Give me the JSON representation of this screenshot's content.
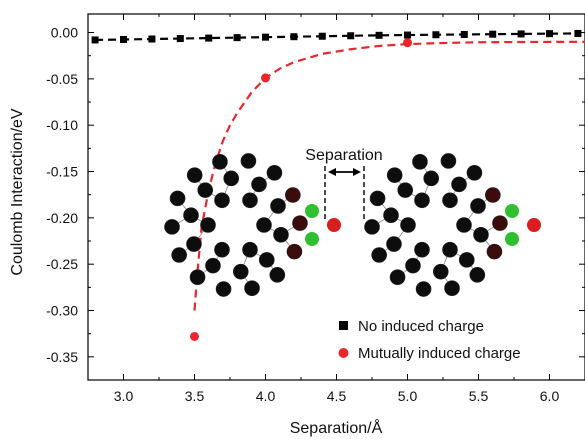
{
  "chart_data": {
    "type": "scatter",
    "xlabel": "Separation/Å",
    "ylabel": "Coulomb Interaction/eV",
    "xlim": [
      2.75,
      6.25
    ],
    "ylim": [
      -0.375,
      0.02
    ],
    "x_ticks": [
      "3.0",
      "3.5",
      "4.0",
      "4.5",
      "5.0",
      "5.5",
      "6.0"
    ],
    "x_tick_values": [
      3.0,
      3.5,
      4.0,
      4.5,
      5.0,
      5.5,
      6.0
    ],
    "y_ticks": [
      "0.00",
      "-0.05",
      "-0.10",
      "-0.15",
      "-0.20",
      "-0.25",
      "-0.30",
      "-0.35"
    ],
    "y_tick_values": [
      0.0,
      -0.05,
      -0.1,
      -0.15,
      -0.2,
      -0.25,
      -0.3,
      -0.35
    ],
    "legend_position": "bottom-right",
    "series": [
      {
        "name": "No induced charge",
        "color": "#000000",
        "marker": "square",
        "line_style": "dashed",
        "x": [
          2.8,
          3.0,
          3.2,
          3.4,
          3.6,
          3.8,
          4.0,
          4.2,
          4.4,
          4.6,
          4.8,
          5.0,
          5.2,
          5.4,
          5.6,
          5.8,
          6.0,
          6.2
        ],
        "y": [
          -0.008,
          -0.0075,
          -0.007,
          -0.0065,
          -0.006,
          -0.0055,
          -0.005,
          -0.0045,
          -0.004,
          -0.0035,
          -0.003,
          -0.0027,
          -0.0024,
          -0.0021,
          -0.0018,
          -0.0015,
          -0.0012,
          -0.001
        ]
      },
      {
        "name": "Mutually induced charge",
        "color": "#e8262b",
        "marker": "circle",
        "line_style": "dashed",
        "x": [
          3.5,
          4.0,
          5.0
        ],
        "y": [
          -0.328,
          -0.049,
          -0.011
        ]
      }
    ],
    "fit_curve": {
      "color": "#e8262b",
      "x": [
        3.5,
        3.52,
        3.55,
        3.6,
        3.65,
        3.7,
        3.75,
        3.8,
        3.9,
        4.0,
        4.1,
        4.2,
        4.4,
        4.6,
        4.8,
        5.0,
        5.2,
        5.5,
        5.8,
        6.25
      ],
      "y": [
        -0.3,
        -0.26,
        -0.21,
        -0.17,
        -0.14,
        -0.117,
        -0.1,
        -0.087,
        -0.065,
        -0.049,
        -0.039,
        -0.032,
        -0.023,
        -0.018,
        -0.0145,
        -0.0125,
        -0.0115,
        -0.0105,
        -0.0102,
        -0.01
      ]
    },
    "annotation": {
      "label": "Separation",
      "color_carbon": "#0d0d0d",
      "color_substituent": "#2fbf2f",
      "color_oxygen": "#d81e1e",
      "color_dark": "#3a0c0c"
    }
  }
}
